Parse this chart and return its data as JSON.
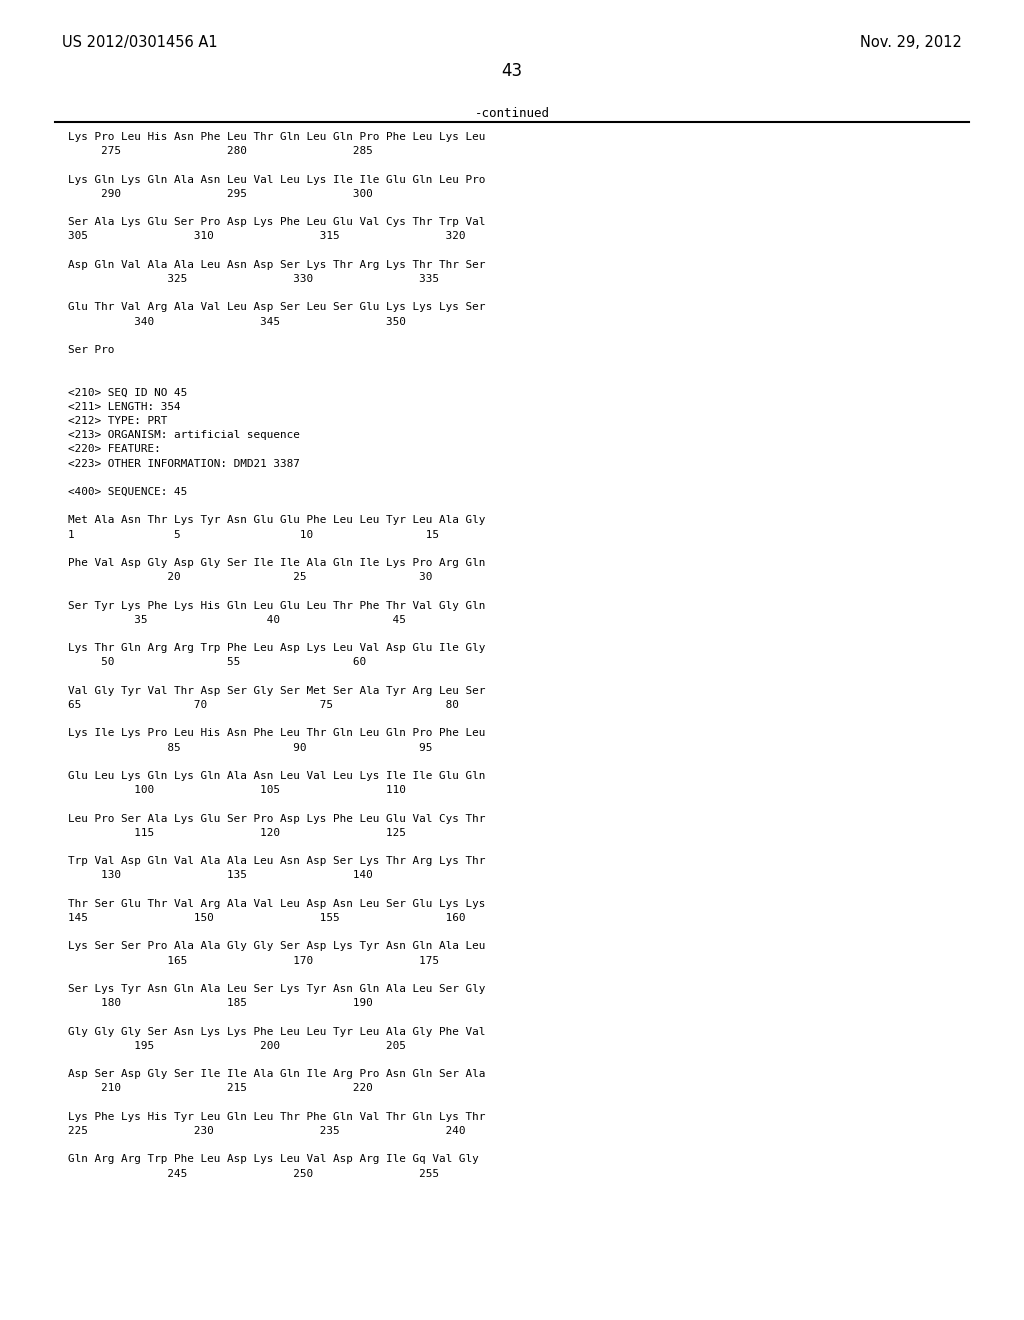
{
  "header_left": "US 2012/0301456 A1",
  "header_right": "Nov. 29, 2012",
  "page_number": "43",
  "continued_text": "-continued",
  "background_color": "#ffffff",
  "text_color": "#000000",
  "body_lines": [
    "Lys Pro Leu His Asn Phe Leu Thr Gln Leu Gln Pro Phe Leu Lys Leu",
    "     275                280                285",
    "",
    "Lys Gln Lys Gln Ala Asn Leu Val Leu Lys Ile Ile Glu Gln Leu Pro",
    "     290                295                300",
    "",
    "Ser Ala Lys Glu Ser Pro Asp Lys Phe Leu Glu Val Cys Thr Trp Val",
    "305                310                315                320",
    "",
    "Asp Gln Val Ala Ala Leu Asn Asp Ser Lys Thr Arg Lys Thr Thr Ser",
    "               325                330                335",
    "",
    "Glu Thr Val Arg Ala Val Leu Asp Ser Leu Ser Glu Lys Lys Lys Ser",
    "          340                345                350",
    "",
    "Ser Pro",
    "",
    "",
    "<210> SEQ ID NO 45",
    "<211> LENGTH: 354",
    "<212> TYPE: PRT",
    "<213> ORGANISM: artificial sequence",
    "<220> FEATURE:",
    "<223> OTHER INFORMATION: DMD21 3387",
    "",
    "<400> SEQUENCE: 45",
    "",
    "Met Ala Asn Thr Lys Tyr Asn Glu Glu Phe Leu Leu Tyr Leu Ala Gly",
    "1               5                  10                 15",
    "",
    "Phe Val Asp Gly Asp Gly Ser Ile Ile Ala Gln Ile Lys Pro Arg Gln",
    "               20                 25                 30",
    "",
    "Ser Tyr Lys Phe Lys His Gln Leu Glu Leu Thr Phe Thr Val Gly Gln",
    "          35                  40                 45",
    "",
    "Lys Thr Gln Arg Arg Trp Phe Leu Asp Lys Leu Val Asp Glu Ile Gly",
    "     50                 55                 60",
    "",
    "Val Gly Tyr Val Thr Asp Ser Gly Ser Met Ser Ala Tyr Arg Leu Ser",
    "65                 70                 75                 80",
    "",
    "Lys Ile Lys Pro Leu His Asn Phe Leu Thr Gln Leu Gln Pro Phe Leu",
    "               85                 90                 95",
    "",
    "Glu Leu Lys Gln Lys Gln Ala Asn Leu Val Leu Lys Ile Ile Glu Gln",
    "          100                105                110",
    "",
    "Leu Pro Ser Ala Lys Glu Ser Pro Asp Lys Phe Leu Glu Val Cys Thr",
    "          115                120                125",
    "",
    "Trp Val Asp Gln Val Ala Ala Leu Asn Asp Ser Lys Thr Arg Lys Thr",
    "     130                135                140",
    "",
    "Thr Ser Glu Thr Val Arg Ala Val Leu Asp Asn Leu Ser Glu Lys Lys",
    "145                150                155                160",
    "",
    "Lys Ser Ser Pro Ala Ala Gly Gly Ser Asp Lys Tyr Asn Gln Ala Leu",
    "               165                170                175",
    "",
    "Ser Lys Tyr Asn Gln Ala Leu Ser Lys Tyr Asn Gln Ala Leu Ser Gly",
    "     180                185                190",
    "",
    "Gly Gly Gly Ser Asn Lys Lys Phe Leu Leu Tyr Leu Ala Gly Phe Val",
    "          195                200                205",
    "",
    "Asp Ser Asp Gly Ser Ile Ile Ala Gln Ile Arg Pro Asn Gln Ser Ala",
    "     210                215                220",
    "",
    "Lys Phe Lys His Tyr Leu Gln Leu Thr Phe Gln Val Thr Gln Lys Thr",
    "225                230                235                240",
    "",
    "Gln Arg Arg Trp Phe Leu Asp Lys Leu Val Asp Arg Ile Gq Val Gly",
    "               245                250                255"
  ],
  "italic_map": {
    "2": [
      "Lys"
    ],
    "6": [
      "Lys",
      "Cys"
    ],
    "8": [
      "Lys"
    ],
    "10": [
      "Lys",
      "Lys"
    ],
    "12": [
      "Lys",
      "Lys",
      "Lys"
    ],
    "30": [
      "Lys"
    ],
    "32": [
      "Lys",
      "Lys"
    ],
    "38": [
      "Lys"
    ],
    "44": [
      "Lys"
    ],
    "48": [
      "Lys"
    ],
    "50": [
      "Lys"
    ],
    "52": [
      "Lys"
    ],
    "54": [
      "Lys"
    ],
    "56": [
      "Lys"
    ],
    "60": [
      "Lys"
    ],
    "62": [
      "Lys",
      "Cys"
    ],
    "64": [
      "Lys"
    ],
    "66": [
      "Lys"
    ],
    "68": [
      "Lys"
    ],
    "70": [
      "Lys"
    ],
    "72": [
      "Lys"
    ],
    "74": [
      "Lys"
    ]
  }
}
